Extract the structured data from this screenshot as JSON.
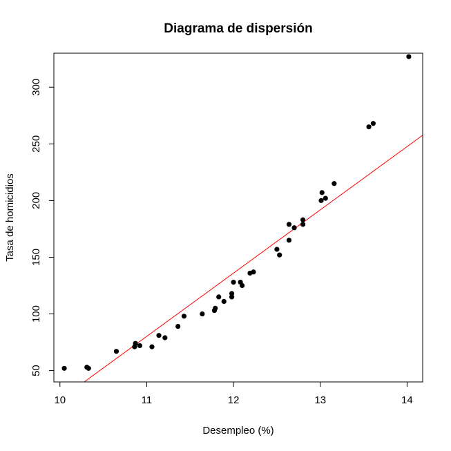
{
  "chart_data": {
    "type": "scatter",
    "title": "Diagrama de dispersión",
    "xlabel": "Desempleo (%)",
    "ylabel": "Tasa de homicidios",
    "xlim": [
      9.93,
      14.18
    ],
    "ylim": [
      40,
      330
    ],
    "xticks": [
      10,
      11,
      12,
      13,
      14
    ],
    "yticks": [
      50,
      100,
      150,
      200,
      250,
      300
    ],
    "grid": false,
    "point_color": "#000000",
    "line_color": "#ff0000",
    "points": [
      {
        "x": 10.05,
        "y": 52
      },
      {
        "x": 10.31,
        "y": 53
      },
      {
        "x": 10.33,
        "y": 52
      },
      {
        "x": 10.65,
        "y": 67
      },
      {
        "x": 10.86,
        "y": 71
      },
      {
        "x": 10.87,
        "y": 74
      },
      {
        "x": 10.92,
        "y": 72
      },
      {
        "x": 11.06,
        "y": 71
      },
      {
        "x": 11.14,
        "y": 81
      },
      {
        "x": 11.21,
        "y": 79
      },
      {
        "x": 11.36,
        "y": 89
      },
      {
        "x": 11.43,
        "y": 98
      },
      {
        "x": 11.64,
        "y": 100
      },
      {
        "x": 11.78,
        "y": 103
      },
      {
        "x": 11.79,
        "y": 105
      },
      {
        "x": 11.83,
        "y": 115
      },
      {
        "x": 11.89,
        "y": 111
      },
      {
        "x": 11.98,
        "y": 115
      },
      {
        "x": 11.98,
        "y": 118
      },
      {
        "x": 12.0,
        "y": 128
      },
      {
        "x": 12.08,
        "y": 128
      },
      {
        "x": 12.1,
        "y": 125
      },
      {
        "x": 12.19,
        "y": 136
      },
      {
        "x": 12.23,
        "y": 137
      },
      {
        "x": 12.5,
        "y": 157
      },
      {
        "x": 12.53,
        "y": 152
      },
      {
        "x": 12.64,
        "y": 165
      },
      {
        "x": 12.64,
        "y": 179
      },
      {
        "x": 12.7,
        "y": 176
      },
      {
        "x": 12.8,
        "y": 179
      },
      {
        "x": 12.8,
        "y": 183
      },
      {
        "x": 13.01,
        "y": 200
      },
      {
        "x": 13.02,
        "y": 207
      },
      {
        "x": 13.06,
        "y": 202
      },
      {
        "x": 13.16,
        "y": 215
      },
      {
        "x": 13.56,
        "y": 265
      },
      {
        "x": 13.61,
        "y": 268
      },
      {
        "x": 14.02,
        "y": 327
      }
    ],
    "fit_line": {
      "intercept": -533.6,
      "slope": 55.8
    }
  }
}
